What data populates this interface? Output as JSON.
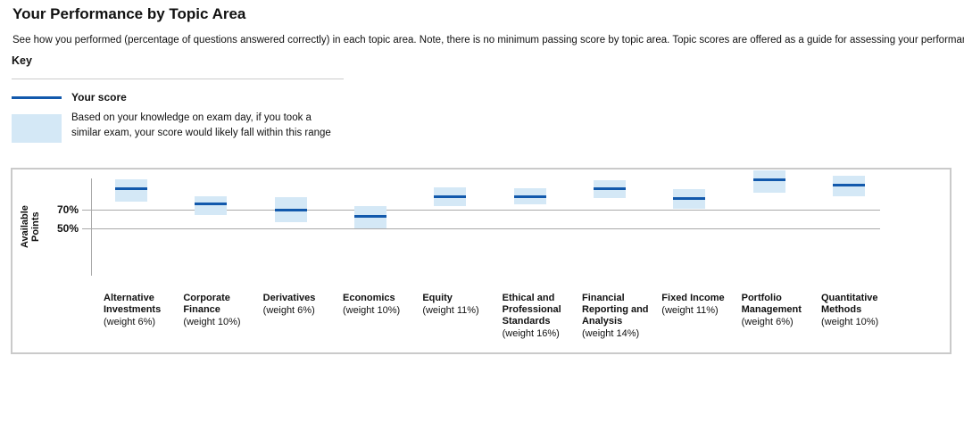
{
  "page": {
    "title": "Your Performance by Topic Area",
    "description": "See how you performed (percentage of questions answered correctly) in each topic area. Note, there is no minimum passing score by topic area. Topic scores are offered as a guide for assessing your performance."
  },
  "key": {
    "heading": "Key",
    "score_label": "Your score",
    "range_label": "Based on your knowledge on exam day, if you took a similar exam, your score would likely fall within this range"
  },
  "colors": {
    "score_line": "#1259ac",
    "range_box": "#d4e8f6",
    "gridline": "#a9a9a9",
    "chart_border": "#cacaca"
  },
  "chart_data": {
    "type": "bar",
    "subtype": "floating-range-with-score-line",
    "title": "",
    "xlabel": "",
    "ylabel": "Available Points",
    "grid": "horizontal lines at labeled ticks only",
    "legend_position": "above chart, in Key section",
    "yticks": [
      {
        "label": "70%",
        "value": 70
      },
      {
        "label": "50%",
        "value": 50
      }
    ],
    "topics": [
      {
        "label": "Alternative Investments",
        "weight": "(weight 6%)",
        "score": 92,
        "range": [
          79,
          102
        ]
      },
      {
        "label": "Corporate Finance",
        "weight": "(weight 10%)",
        "score": 76,
        "range": [
          64,
          84
        ]
      },
      {
        "label": "Derivatives",
        "weight": "(weight 6%)",
        "score": 70,
        "range": [
          57,
          83
        ]
      },
      {
        "label": "Economics",
        "weight": "(weight 10%)",
        "score": 63,
        "range": [
          50,
          74
        ]
      },
      {
        "label": "Equity",
        "weight": "(weight 11%)",
        "score": 84,
        "range": [
          74,
          94
        ]
      },
      {
        "label": "Ethical and Professional Standards",
        "weight": "(weight 16%)",
        "score": 84,
        "range": [
          76,
          93
        ]
      },
      {
        "label": "Financial Reporting and Analysis",
        "weight": "(weight 14%)",
        "score": 92,
        "range": [
          82,
          101
        ]
      },
      {
        "label": "Fixed Income",
        "weight": "(weight 11%)",
        "score": 82,
        "range": [
          71,
          92
        ]
      },
      {
        "label": "Portfolio Management",
        "weight": "(weight 6%)",
        "score": 102,
        "range": [
          88,
          112
        ]
      },
      {
        "label": "Quantitative Methods",
        "weight": "(weight 10%)",
        "score": 96,
        "range": [
          84,
          106
        ]
      }
    ]
  }
}
